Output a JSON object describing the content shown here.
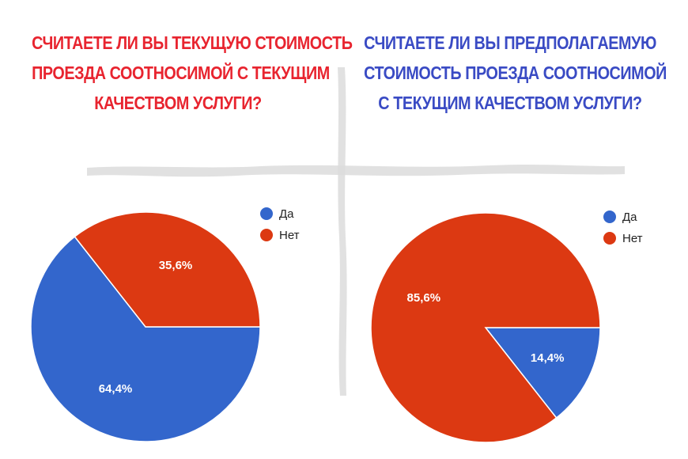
{
  "colors": {
    "left_title": "#e8242f",
    "right_title": "#3a4bc4",
    "yes": "#3366cc",
    "no": "#dc3912",
    "divider": "#dcdcdc"
  },
  "chart_data": [
    {
      "type": "pie",
      "title_lines": [
        "СЧИТАЕТЕ ЛИ ВЫ ТЕКУЩУЮ СТОИМОСТЬ",
        "ПРОЕЗДА СООТНОСИМОЙ С ТЕКУЩИМ",
        "КАЧЕСТВОМ УСЛУГИ?"
      ],
      "categories": [
        "Да",
        "Нет"
      ],
      "values": [
        64.4,
        35.6
      ],
      "value_labels": [
        "64,4%",
        "35,6%"
      ],
      "legend_position": "top-right"
    },
    {
      "type": "pie",
      "title_lines": [
        "СЧИТАЕТЕ ЛИ ВЫ ПРЕДПОЛАГАЕМУЮ",
        "СТОИМОСТЬ ПРОЕЗДА СООТНОСИМОЙ",
        "С ТЕКУЩИМ КАЧЕСТВОМ УСЛУГИ?"
      ],
      "categories": [
        "Да",
        "Нет"
      ],
      "values": [
        14.4,
        85.6
      ],
      "value_labels": [
        "14,4%",
        "85,6%"
      ],
      "legend_position": "top-right"
    }
  ]
}
